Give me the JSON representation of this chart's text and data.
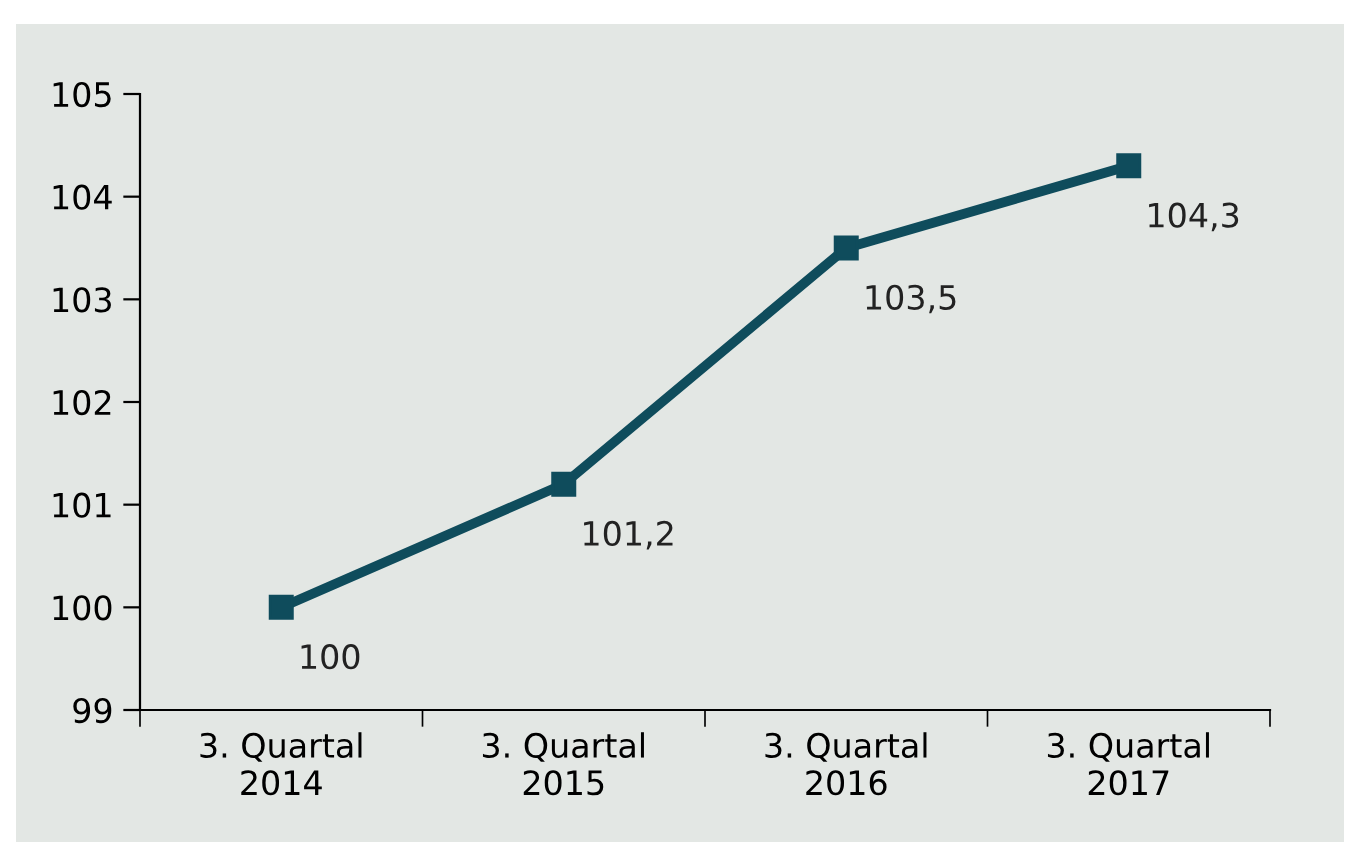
{
  "chart_data": {
    "type": "line",
    "categories": [
      "3. Quartal\n2014",
      "3. Quartal\n2015",
      "3. Quartal\n2016",
      "3. Quartal\n2017"
    ],
    "series": [
      {
        "color": "#0f4c5c",
        "values": [
          100,
          101.2,
          103.5,
          104.3
        ],
        "value_labels": [
          "100",
          "101,2",
          "103,5",
          "104,3"
        ]
      }
    ],
    "ylim": [
      99,
      105
    ],
    "yticks": [
      99,
      100,
      101,
      102,
      103,
      104,
      105
    ],
    "grid": false,
    "legend": false,
    "marker": "square",
    "line_style": "solid"
  }
}
